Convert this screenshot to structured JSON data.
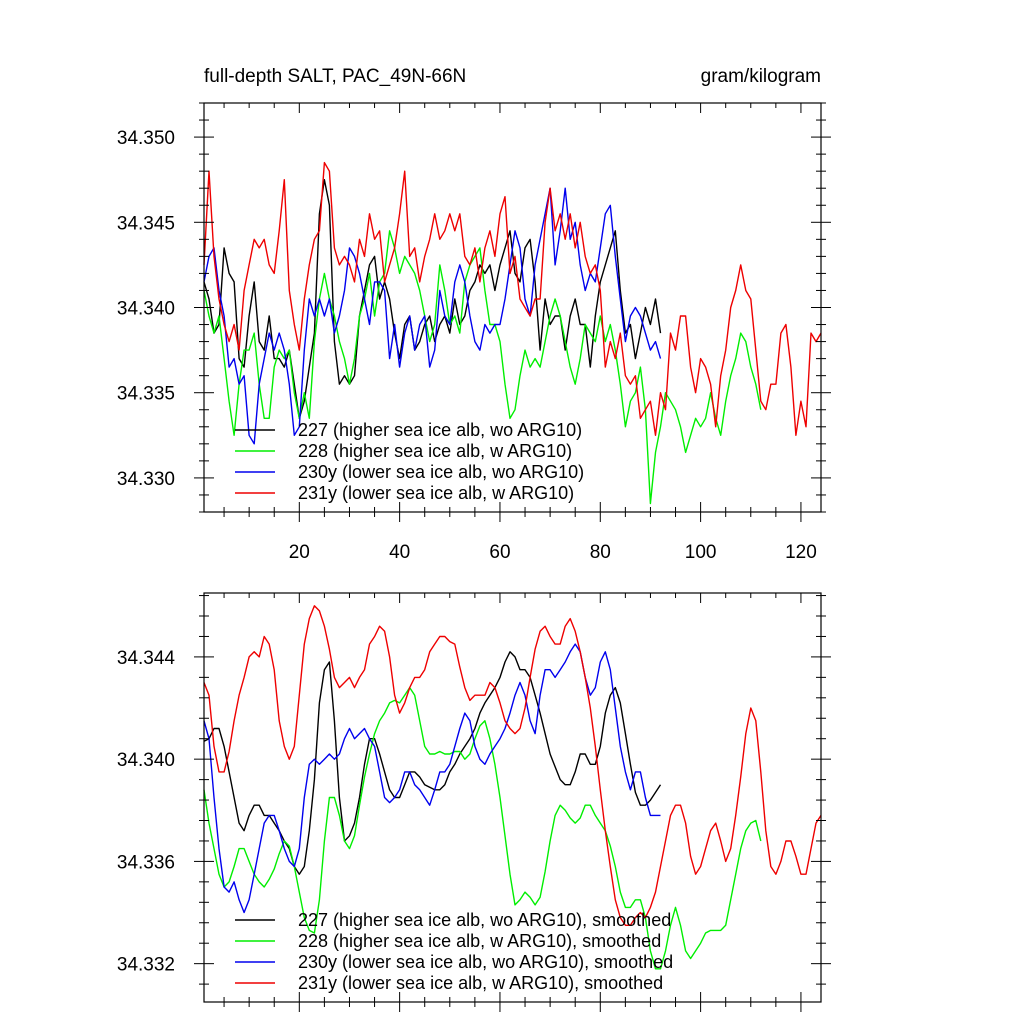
{
  "chart_data": [
    {
      "type": "line",
      "title": "full-depth SALT, PAC_49N-66N",
      "units": "gram/kilogram",
      "xlim": [
        1,
        124
      ],
      "ylim": [
        34.328,
        34.352
      ],
      "xticks": [
        20,
        40,
        60,
        80,
        100,
        120
      ],
      "yticks": [
        "34.330",
        "34.335",
        "34.340",
        "34.345",
        "34.350"
      ],
      "legend_position": "bottom-left",
      "series": [
        {
          "name": "227 (higher sea ice alb, wo ARG10)",
          "color": "#000000",
          "values": [
            34.3415,
            34.3405,
            34.3385,
            34.339,
            34.3435,
            34.342,
            34.3415,
            34.337,
            34.3365,
            34.3395,
            34.3415,
            34.338,
            34.3375,
            34.3395,
            34.337,
            34.337,
            34.3365,
            34.3375,
            34.3355,
            34.3335,
            34.3345,
            34.3365,
            34.3385,
            34.3455,
            34.3475,
            34.346,
            34.338,
            34.3355,
            34.336,
            34.3355,
            34.336,
            34.3395,
            34.341,
            34.3425,
            34.343,
            34.3405,
            34.3415,
            34.3405,
            34.3385,
            34.337,
            34.339,
            34.3395,
            34.3375,
            34.338,
            34.339,
            34.3395,
            34.338,
            34.339,
            34.3395,
            34.3385,
            34.3405,
            34.339,
            34.3395,
            34.341,
            34.3415,
            34.3425,
            34.342,
            34.3425,
            34.341,
            34.3425,
            34.3435,
            34.3445,
            34.342,
            34.3415,
            34.3435,
            34.344,
            34.3415,
            34.3375,
            34.3405,
            34.339,
            34.3395,
            34.3395,
            34.3375,
            34.3395,
            34.3405,
            34.339,
            34.339,
            34.3365,
            34.3395,
            34.3415,
            34.3425,
            34.3435,
            34.3445,
            34.341,
            34.3385,
            34.339,
            34.337,
            34.3385,
            34.34,
            34.339,
            34.3405,
            34.3385
          ]
        },
        {
          "name": "228 (higher sea ice alb, w ARG10)",
          "color": "#00ee00",
          "values": [
            34.341,
            34.3395,
            34.3385,
            34.3395,
            34.337,
            34.3345,
            34.3325,
            34.3355,
            34.3375,
            34.3375,
            34.3385,
            34.3355,
            34.3335,
            34.3335,
            34.3365,
            34.3375,
            34.337,
            34.3375,
            34.335,
            34.3335,
            34.335,
            34.3335,
            34.338,
            34.3405,
            34.342,
            34.3405,
            34.3395,
            34.338,
            34.337,
            34.3355,
            34.337,
            34.3395,
            34.3405,
            34.342,
            34.3395,
            34.3415,
            34.342,
            34.3445,
            34.3435,
            34.342,
            34.343,
            34.3425,
            34.342,
            34.341,
            34.3395,
            34.338,
            34.339,
            34.3425,
            34.341,
            34.339,
            34.3395,
            34.3385,
            34.3415,
            34.3425,
            34.343,
            34.3435,
            34.341,
            34.339,
            34.339,
            34.338,
            34.3355,
            34.3335,
            34.334,
            34.336,
            34.3375,
            34.3365,
            34.337,
            34.3365,
            34.338,
            34.3395,
            34.3405,
            34.3395,
            34.338,
            34.3365,
            34.3355,
            34.337,
            34.339,
            34.3385,
            34.338,
            34.3395,
            34.338,
            34.339,
            34.3375,
            34.3355,
            34.333,
            34.3345,
            34.335,
            34.3365,
            34.334,
            34.3285,
            34.3315,
            34.333,
            34.335,
            34.3345,
            34.334,
            34.333,
            34.3315,
            34.3325,
            34.3335,
            34.333,
            34.3335,
            34.335,
            34.3335,
            34.3325,
            34.3345,
            34.336,
            34.337,
            34.3385,
            34.338,
            34.3365,
            34.3355,
            34.334
          ]
        },
        {
          "name": "230y (lower sea ice alb, wo ARG10)",
          "color": "#0000ee",
          "values": [
            34.3415,
            34.343,
            34.3435,
            34.341,
            34.3395,
            34.3365,
            34.337,
            34.3355,
            34.336,
            34.3325,
            34.332,
            34.3355,
            34.337,
            34.3385,
            34.3375,
            34.3385,
            34.3375,
            34.3355,
            34.3325,
            34.333,
            34.3375,
            34.3405,
            34.3395,
            34.3405,
            34.3395,
            34.3405,
            34.3385,
            34.3395,
            34.341,
            34.3435,
            34.343,
            34.342,
            34.3405,
            34.339,
            34.3415,
            34.3415,
            34.341,
            34.337,
            34.339,
            34.3365,
            34.3385,
            34.3395,
            34.3375,
            34.339,
            34.3395,
            34.3365,
            34.3375,
            34.341,
            34.3395,
            34.339,
            34.3415,
            34.3425,
            34.3415,
            34.3395,
            34.338,
            34.3375,
            34.339,
            34.3385,
            34.339,
            34.339,
            34.3405,
            34.3425,
            34.3445,
            34.3435,
            34.3405,
            34.3395,
            34.3425,
            34.344,
            34.3455,
            34.347,
            34.3425,
            34.3445,
            34.347,
            34.344,
            34.345,
            34.3425,
            34.341,
            34.342,
            34.3415,
            34.3435,
            34.3455,
            34.346,
            34.343,
            34.3405,
            34.338,
            34.3395,
            34.34,
            34.3395,
            34.3385,
            34.3375,
            34.338,
            34.337
          ]
        },
        {
          "name": "231y (lower sea ice alb, w ARG10)",
          "color": "#ee0000",
          "values": [
            34.3425,
            34.348,
            34.343,
            34.3405,
            34.339,
            34.338,
            34.339,
            34.3375,
            34.341,
            34.3425,
            34.344,
            34.3435,
            34.344,
            34.3425,
            34.342,
            34.3445,
            34.3475,
            34.341,
            34.339,
            34.3375,
            34.3405,
            34.3425,
            34.344,
            34.3445,
            34.3485,
            34.348,
            34.3435,
            34.3425,
            34.343,
            34.3425,
            34.3415,
            34.344,
            34.343,
            34.3455,
            34.344,
            34.3445,
            34.3415,
            34.3425,
            34.3435,
            34.3455,
            34.348,
            34.343,
            34.3435,
            34.3415,
            34.343,
            34.344,
            34.3455,
            34.344,
            34.3445,
            34.3455,
            34.3445,
            34.3455,
            34.343,
            34.3425,
            34.3435,
            34.3415,
            34.3435,
            34.3445,
            34.343,
            34.3455,
            34.3465,
            34.342,
            34.343,
            34.3405,
            34.34,
            34.3395,
            34.3405,
            34.3405,
            34.345,
            34.347,
            34.3445,
            34.3455,
            34.344,
            34.3455,
            34.3435,
            34.345,
            34.343,
            34.342,
            34.3425,
            34.341,
            34.3365,
            34.338,
            34.337,
            34.3385,
            34.336,
            34.3355,
            34.336,
            34.3335,
            34.334,
            34.3345,
            34.3325,
            34.335,
            34.334,
            34.3385,
            34.3375,
            34.3395,
            34.3395,
            34.3365,
            34.335,
            34.337,
            34.3365,
            34.3355,
            34.333,
            34.336,
            34.3375,
            34.34,
            34.341,
            34.3425,
            34.341,
            34.3405,
            34.3375,
            34.3345,
            34.334,
            34.3355,
            34.3355,
            34.3385,
            34.339,
            34.3365,
            34.3325,
            34.3345,
            34.333,
            34.3385,
            34.338,
            34.3385
          ]
        }
      ]
    },
    {
      "type": "line",
      "xlim": [
        1,
        124
      ],
      "ylim": [
        34.3305,
        34.3465
      ],
      "xticks": [
        20,
        40,
        60,
        80,
        100,
        120
      ],
      "yticks": [
        "34.332",
        "34.336",
        "34.340",
        "34.344"
      ],
      "legend_position": "bottom-left",
      "series": [
        {
          "name": "227 (higher sea ice alb, wo ARG10), smoothed",
          "color": "#000000",
          "values": [
            34.3407,
            34.3408,
            34.3412,
            34.3412,
            34.3405,
            34.3395,
            34.3385,
            34.3375,
            34.3372,
            34.3378,
            34.3382,
            34.3382,
            34.3378,
            34.3378,
            34.3375,
            34.3372,
            34.3368,
            34.3365,
            34.3358,
            34.3355,
            34.3358,
            34.3372,
            34.3392,
            34.3422,
            34.3435,
            34.3438,
            34.3415,
            34.3385,
            34.3368,
            34.337,
            34.3375,
            34.3385,
            34.3398,
            34.3408,
            34.3408,
            34.3402,
            34.3395,
            34.3388,
            34.3385,
            34.3385,
            34.339,
            34.3395,
            34.3395,
            34.3393,
            34.339,
            34.3389,
            34.3388,
            34.3388,
            34.339,
            34.3395,
            34.3398,
            34.3402,
            34.3405,
            34.3408,
            34.3412,
            34.3418,
            34.3422,
            34.3425,
            34.3428,
            34.3432,
            34.3438,
            34.3442,
            34.344,
            34.3435,
            34.3435,
            34.3432,
            34.3425,
            34.3418,
            34.341,
            34.3402,
            34.3397,
            34.3392,
            34.339,
            34.339,
            34.3395,
            34.3402,
            34.3402,
            34.3398,
            34.3398,
            34.3405,
            34.3418,
            34.3425,
            34.3428,
            34.3422,
            34.341,
            34.3398,
            34.3387,
            34.3382,
            34.3382,
            34.3384,
            34.3387,
            34.339
          ]
        },
        {
          "name": "228 (higher sea ice alb, w ARG10), smoothed",
          "color": "#00ee00",
          "values": [
            34.3388,
            34.3375,
            34.3365,
            34.3355,
            34.335,
            34.3352,
            34.3358,
            34.3365,
            34.3365,
            34.336,
            34.3355,
            34.3352,
            34.335,
            34.3353,
            34.3357,
            34.3363,
            34.3368,
            34.3366,
            34.3358,
            34.3348,
            34.3338,
            34.3333,
            34.3332,
            34.3345,
            34.3368,
            34.3385,
            34.3385,
            34.3378,
            34.3368,
            34.3365,
            34.337,
            34.3382,
            34.3393,
            34.3402,
            34.341,
            34.3415,
            34.3418,
            34.3422,
            34.3423,
            34.3422,
            34.3425,
            34.3428,
            34.3425,
            34.3415,
            34.3405,
            34.3402,
            34.3402,
            34.3403,
            34.3402,
            34.3402,
            34.3403,
            34.3403,
            34.34,
            34.3402,
            34.3408,
            34.3413,
            34.3415,
            34.3408,
            34.3398,
            34.3385,
            34.337,
            34.3355,
            34.3343,
            34.3345,
            34.3348,
            34.3346,
            34.3343,
            34.3346,
            34.3356,
            34.3368,
            34.3378,
            34.3382,
            34.338,
            34.3377,
            34.3375,
            34.3377,
            34.3382,
            34.3382,
            34.3378,
            34.3375,
            34.3372,
            34.3366,
            34.3358,
            34.3348,
            34.3342,
            34.3342,
            34.3345,
            34.3345,
            34.3338,
            34.3325,
            34.3318,
            34.3318,
            34.3325,
            34.3335,
            34.3342,
            34.3335,
            34.3325,
            34.3322,
            34.3325,
            34.3328,
            34.3332,
            34.3333,
            34.3333,
            34.3333,
            34.3335,
            34.3345,
            34.3355,
            34.3365,
            34.3372,
            34.3375,
            34.3376,
            34.3368
          ]
        },
        {
          "name": "230y (lower sea ice alb, wo ARG10), smoothed",
          "color": "#0000ee",
          "values": [
            34.3415,
            34.3408,
            34.3385,
            34.3365,
            34.335,
            34.3348,
            34.3352,
            34.3345,
            34.334,
            34.3345,
            34.3355,
            34.3365,
            34.3375,
            34.3378,
            34.3378,
            34.3372,
            34.3365,
            34.336,
            34.3358,
            34.3365,
            34.3385,
            34.3398,
            34.34,
            34.3398,
            34.34,
            34.3402,
            34.34,
            34.3402,
            34.3408,
            34.3412,
            34.3408,
            34.341,
            34.3412,
            34.3408,
            34.3405,
            34.3395,
            34.3385,
            34.3383,
            34.3385,
            34.3388,
            34.3395,
            34.3395,
            34.339,
            34.3388,
            34.3385,
            34.3382,
            34.3388,
            34.3395,
            34.3395,
            34.3398,
            34.3405,
            34.3412,
            34.3418,
            34.3415,
            34.3405,
            34.34,
            34.3398,
            34.3402,
            34.3405,
            34.3408,
            34.3412,
            34.3418,
            34.3425,
            34.343,
            34.3425,
            34.3415,
            34.341,
            34.3425,
            34.3435,
            34.3435,
            34.3432,
            34.3435,
            34.3438,
            34.3442,
            34.3445,
            34.3442,
            34.3432,
            34.3425,
            34.3428,
            34.3438,
            34.3442,
            34.3435,
            34.342,
            34.3405,
            34.3395,
            34.3388,
            34.3395,
            34.3395,
            34.3385,
            34.3378,
            34.3378,
            34.3378
          ]
        },
        {
          "name": "231y (lower sea ice alb, w ARG10), smoothed",
          "color": "#ee0000",
          "values": [
            34.343,
            34.3425,
            34.3405,
            34.3395,
            34.3395,
            34.3403,
            34.3415,
            34.3425,
            34.3432,
            34.344,
            34.3442,
            34.344,
            34.3448,
            34.3445,
            34.3435,
            34.3415,
            34.3405,
            34.34,
            34.3405,
            34.3425,
            34.3445,
            34.3455,
            34.346,
            34.3458,
            34.3452,
            34.3443,
            34.3432,
            34.3428,
            34.343,
            34.3432,
            34.3428,
            34.3432,
            34.3435,
            34.3445,
            34.3448,
            34.3452,
            34.345,
            34.344,
            34.3425,
            34.3418,
            34.3422,
            34.3428,
            34.3432,
            34.3432,
            34.3435,
            34.3442,
            34.3445,
            34.3448,
            34.3448,
            34.3446,
            34.3445,
            34.3436,
            34.3428,
            34.3423,
            34.3425,
            34.3425,
            34.3425,
            34.343,
            34.3428,
            34.3422,
            34.3415,
            34.3412,
            34.341,
            34.3412,
            34.342,
            34.3432,
            34.3443,
            34.345,
            34.3452,
            34.3448,
            34.3445,
            34.3445,
            34.3452,
            34.3455,
            34.345,
            34.3442,
            34.3432,
            34.342,
            34.3405,
            34.3388,
            34.3372,
            34.3358,
            34.3345,
            34.3338,
            34.3335,
            34.3335,
            34.3338,
            34.334,
            34.3338,
            34.3342,
            34.3348,
            34.3358,
            34.3368,
            34.3378,
            34.3382,
            34.3382,
            34.3375,
            34.3362,
            34.3355,
            34.3358,
            34.3365,
            34.3372,
            34.3375,
            34.3368,
            34.336,
            34.3365,
            34.3378,
            34.3393,
            34.341,
            34.342,
            34.3415,
            34.3395,
            34.3372,
            34.3358,
            34.3355,
            34.336,
            34.3368,
            34.3368,
            34.3362,
            34.3355,
            34.3355,
            34.3365,
            34.3375,
            34.3378
          ]
        }
      ]
    }
  ]
}
